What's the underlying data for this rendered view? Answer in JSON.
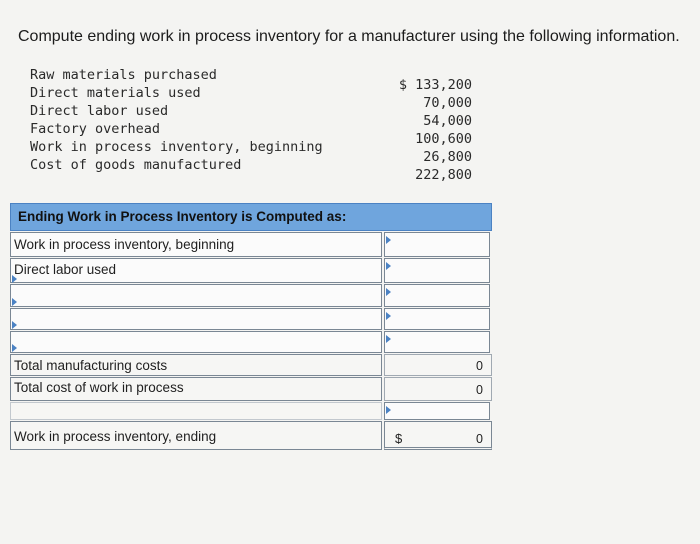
{
  "question": "Compute ending work in process inventory for a manufacturer using the following information.",
  "given": [
    {
      "label": "Raw materials purchased",
      "value": "$ 133,200"
    },
    {
      "label": "Direct materials used",
      "value": "70,000"
    },
    {
      "label": "Direct labor used",
      "value": "54,000"
    },
    {
      "label": "Factory overhead",
      "value": "100,600"
    },
    {
      "label": "Work in process inventory, beginning",
      "value": "26,800"
    },
    {
      "label": "Cost of goods manufactured",
      "value": "222,800"
    }
  ],
  "table": {
    "header": "Ending Work in Process Inventory is Computed as:",
    "rows": [
      {
        "label": "Work in process inventory, beginning",
        "input": ""
      },
      {
        "label": "Direct labor used",
        "input": ""
      },
      {
        "label": "",
        "input": ""
      },
      {
        "label": "",
        "input": ""
      },
      {
        "label": "",
        "input": ""
      }
    ],
    "total_manufacturing_costs": {
      "label": "Total manufacturing costs",
      "value": "0"
    },
    "total_cost_wip": {
      "label": "Total cost of work in process",
      "value": "0"
    },
    "ending": {
      "label": "Work in process inventory, ending",
      "currency": "$",
      "value": "0"
    }
  }
}
